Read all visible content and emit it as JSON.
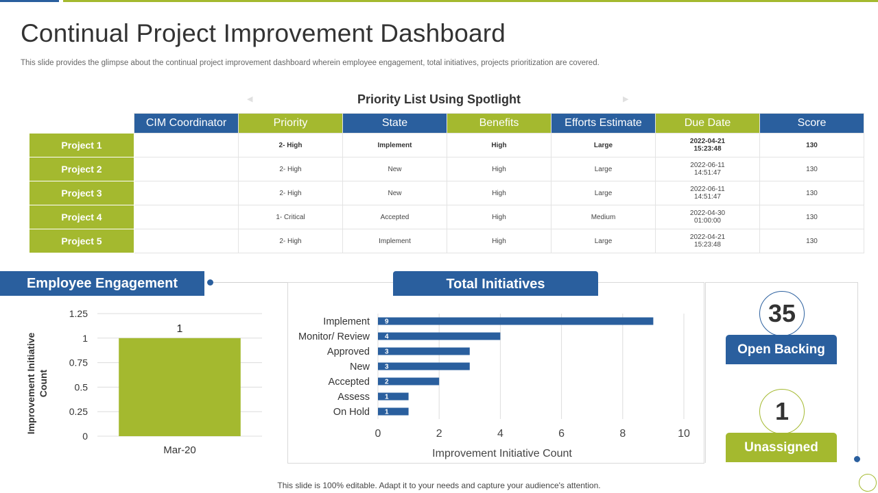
{
  "header": {
    "title": "Continual Project Improvement Dashboard",
    "subtitle": "This slide provides the glimpse about the continual project improvement dashboard wherein employee engagement, total initiatives, projects prioritization are covered."
  },
  "priority_list": {
    "title": "Priority List Using Spotlight",
    "columns": [
      "CIM Coordinator",
      "Priority",
      "State",
      "Benefits",
      "Efforts Estimate",
      "Due Date",
      "Score"
    ],
    "rows": [
      {
        "project": "Project 1",
        "coordinator": "",
        "priority": "2- High",
        "state": "Implement",
        "benefits": "High",
        "efforts": "Large",
        "due_date": "2022-04-21",
        "due_time": "15:23:48",
        "score": "130"
      },
      {
        "project": "Project 2",
        "coordinator": "",
        "priority": "2- High",
        "state": "New",
        "benefits": "High",
        "efforts": "Large",
        "due_date": "2022-06-11",
        "due_time": "14:51:47",
        "score": "130"
      },
      {
        "project": "Project 3",
        "coordinator": "",
        "priority": "2- High",
        "state": "New",
        "benefits": "High",
        "efforts": "Large",
        "due_date": "2022-06-11",
        "due_time": "14:51:47",
        "score": "130"
      },
      {
        "project": "Project 4",
        "coordinator": "",
        "priority": "1- Critical",
        "state": "Accepted",
        "benefits": "High",
        "efforts": "Medium",
        "due_date": "2022-04-30",
        "due_time": "01:00:00",
        "score": "130"
      },
      {
        "project": "Project 5",
        "coordinator": "",
        "priority": "2- High",
        "state": "Implement",
        "benefits": "High",
        "efforts": "Large",
        "due_date": "2022-04-21",
        "due_time": "15:23:48",
        "score": "130"
      }
    ]
  },
  "employee_engagement": {
    "title": "Employee Engagement",
    "chart": {
      "type": "bar",
      "categories": [
        "Mar-20"
      ],
      "values": [
        1
      ],
      "data_labels": [
        "1"
      ],
      "ylabel_line1": "Improvement Initiative",
      "ylabel_line2": "Count",
      "ylim": [
        0,
        1.25
      ],
      "yticks": [
        "0",
        "0.25",
        "0.5",
        "0.75",
        "1",
        "1.25"
      ],
      "bar_color": "#a4b92f"
    }
  },
  "total_initiatives": {
    "title": "Total Initiatives",
    "chart": {
      "type": "bar",
      "orientation": "horizontal",
      "categories": [
        "Implement",
        "Monitor/ Review",
        "Approved",
        "New",
        "Accepted",
        "Assess",
        "On Hold"
      ],
      "values": [
        9,
        4,
        3,
        3,
        2,
        1,
        1
      ],
      "data_labels": [
        "9",
        "4",
        "3",
        "3",
        "2",
        "1",
        "1"
      ],
      "xlabel": "Improvement Initiative Count",
      "xlim": [
        0,
        10
      ],
      "xticks": [
        "0",
        "2",
        "4",
        "6",
        "8",
        "10"
      ],
      "bar_color": "#2a5f9e"
    }
  },
  "stats": {
    "open_backing": {
      "value": "35",
      "label": "Open Backing"
    },
    "unassigned": {
      "value": "1",
      "label": "Unassigned"
    }
  },
  "chart_data": [
    {
      "type": "bar",
      "title": "Employee Engagement",
      "categories": [
        "Mar-20"
      ],
      "values": [
        1
      ],
      "ylabel": "Improvement Initiative Count",
      "ylim": [
        0,
        1.25
      ]
    },
    {
      "type": "bar",
      "title": "Total Initiatives",
      "categories": [
        "Implement",
        "Monitor/ Review",
        "Approved",
        "New",
        "Accepted",
        "Assess",
        "On Hold"
      ],
      "values": [
        9,
        4,
        3,
        3,
        2,
        1,
        1
      ],
      "xlabel": "Improvement Initiative Count",
      "xlim": [
        0,
        10
      ]
    }
  ],
  "footer": "This slide is 100% editable. Adapt it to your needs and capture your audience's attention."
}
